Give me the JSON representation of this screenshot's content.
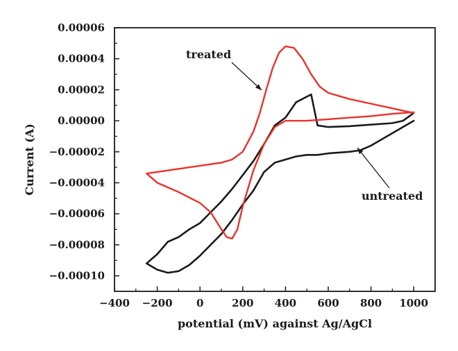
{
  "chart_data": {
    "type": "line",
    "xlabel": "potential (mV) against Ag/AgCl",
    "ylabel": "Current (A)",
    "xlim": [
      -400,
      1100
    ],
    "ylim": [
      -0.00011,
      6e-05
    ],
    "x_ticks": [
      -400,
      -200,
      0,
      200,
      400,
      600,
      800,
      1000
    ],
    "x_tick_labels": [
      "−400",
      "−200",
      "0",
      "200",
      "400",
      "600",
      "800",
      "1000"
    ],
    "y_ticks": [
      6e-05,
      4e-05,
      2e-05,
      0.0,
      -2e-05,
      -4e-05,
      -6e-05,
      -8e-05,
      -0.0001
    ],
    "y_tick_labels": [
      "0.00006",
      "0.00004",
      "0.00002",
      "0.00000",
      "−0.00002",
      "−0.00004",
      "−0.00006",
      "−0.00008",
      "−0.00010"
    ],
    "grid": false,
    "series": [
      {
        "name": "treated",
        "color": "#e8322a",
        "x": [
          1000,
          900,
          800,
          700,
          600,
          560,
          520,
          480,
          440,
          400,
          370,
          340,
          310,
          280,
          250,
          200,
          150,
          100,
          50,
          0,
          -100,
          -200,
          -250,
          -200,
          -100,
          0,
          50,
          100,
          125,
          150,
          175,
          200,
          250,
          300,
          350,
          400,
          500,
          600,
          700,
          800,
          900,
          1000
        ],
        "y": [
          5e-06,
          8e-06,
          1.1e-05,
          1.4e-05,
          1.8e-05,
          2.2e-05,
          3e-05,
          4e-05,
          4.7e-05,
          4.8e-05,
          4.4e-05,
          3.4e-05,
          2e-05,
          5e-06,
          -7e-06,
          -2e-05,
          -2.5e-05,
          -2.7e-05,
          -2.8e-05,
          -2.9e-05,
          -3.1e-05,
          -3.3e-05,
          -3.4e-05,
          -4e-05,
          -4.6e-05,
          -5.3e-05,
          -5.9e-05,
          -7e-05,
          -7.5e-05,
          -7.6e-05,
          -7e-05,
          -5.5e-05,
          -3.2e-05,
          -1.5e-05,
          -4e-06,
          0.0,
          0.0,
          1e-06,
          2e-06,
          3e-06,
          4.5e-06,
          5.5e-06
        ]
      },
      {
        "name": "untreated",
        "color": "#1a1a1a",
        "x": [
          1000,
          950,
          900,
          800,
          750,
          700,
          600,
          550,
          520,
          450,
          400,
          350,
          300,
          250,
          200,
          150,
          100,
          50,
          0,
          -50,
          -100,
          -150,
          -200,
          -250,
          -200,
          -150,
          -100,
          -50,
          0,
          50,
          100,
          150,
          200,
          250,
          300,
          350,
          400,
          450,
          500,
          550,
          600,
          700,
          750,
          800,
          900,
          1000
        ],
        "y": [
          5e-06,
          0.0,
          -1.5e-06,
          -2.5e-06,
          -3e-06,
          -3.5e-06,
          -4e-06,
          -3e-06,
          1.7e-05,
          1.2e-05,
          2e-06,
          -3e-06,
          -1.5e-05,
          -2.6e-05,
          -3.5e-05,
          -4.4e-05,
          -5.2e-05,
          -5.9e-05,
          -6.6e-05,
          -7e-05,
          -7.5e-05,
          -7.8e-05,
          -8.6e-05,
          -9.2e-05,
          -9.6e-05,
          -9.8e-05,
          -9.7e-05,
          -9.3e-05,
          -8.7e-05,
          -8e-05,
          -7.3e-05,
          -6.4e-05,
          -5.4e-05,
          -4.5e-05,
          -3.3e-05,
          -2.7e-05,
          -2.5e-05,
          -2.3e-05,
          -2.2e-05,
          -2.2e-05,
          -2.1e-05,
          -2e-05,
          -1.9e-05,
          -1.6e-05,
          -8e-06,
          0.0
        ]
      }
    ],
    "annotations": [
      {
        "text": "treated",
        "series": "treated"
      },
      {
        "text": "untreated",
        "series": "untreated"
      }
    ]
  }
}
